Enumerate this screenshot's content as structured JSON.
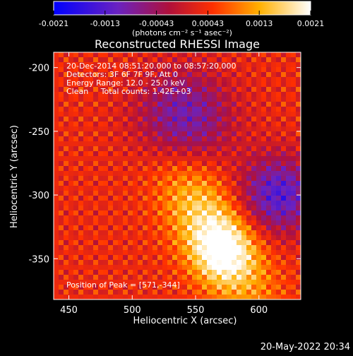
{
  "chart_data": {
    "type": "heatmap",
    "title": "Reconstructed RHESSI Image",
    "xlabel": "Heliocentric X (arcsec)",
    "ylabel": "Heliocentric Y (arcsec)",
    "xlim": [
      438,
      633
    ],
    "ylim": [
      -382,
      -188
    ],
    "xticks": [
      450,
      500,
      550,
      600
    ],
    "yticks": [
      -200,
      -250,
      -300,
      -350
    ],
    "colorbar": {
      "ticks": [
        "-0.0021",
        "-0.0013",
        "-0.00043",
        "0.00043",
        "0.0013",
        "0.0021"
      ],
      "range": [
        -0.0021,
        0.0021
      ],
      "units_label": "(photons cm⁻² s⁻¹ asec⁻²)",
      "colormap": [
        "#0000ff",
        "#7a1fb0",
        "#c81a1a",
        "#ff7a00",
        "#ffd000",
        "#ffffff"
      ]
    },
    "annotations": [
      "20-Dec-2014 08:51:20.000 to 08:57:20.000",
      "Detectors: 3F 6F 7F 9F, Att 0",
      "Energy Range: 12.0 - 25.0 keV",
      "Clean     Total counts: 1.42E+03"
    ],
    "peak_label": "Position of Peak = [571,-344]",
    "peak": [
      571,
      -344
    ],
    "timestamp": "20-May-2022 20:34"
  }
}
